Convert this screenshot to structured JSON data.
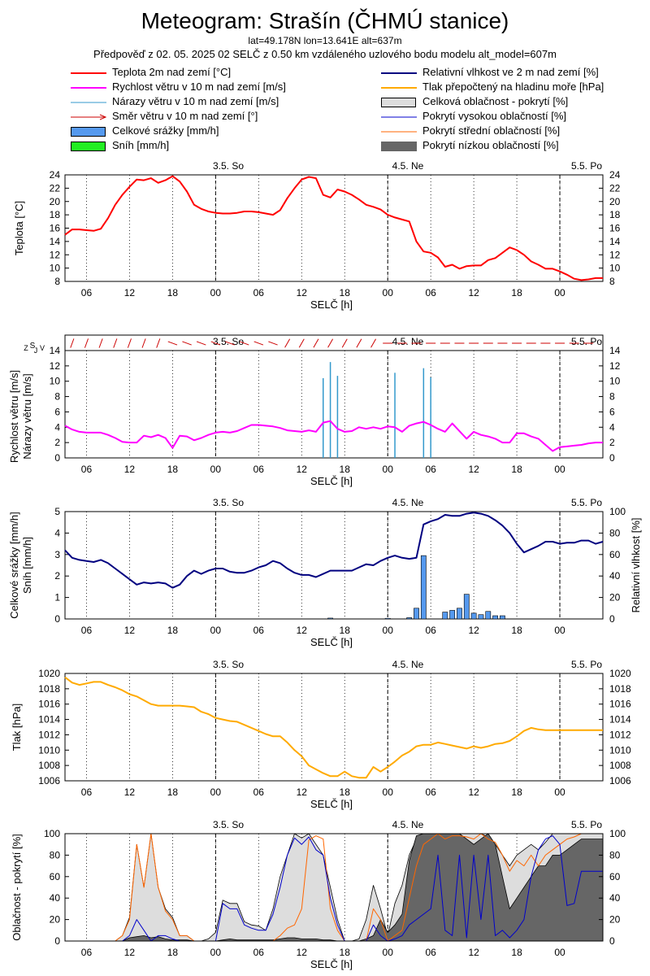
{
  "header": {
    "title": "Meteogram: Strašín (ČHMÚ stanice)",
    "subtitle": "lat=49.178N lon=13.641E alt=637m",
    "forecast": "Předpověď z 02. 05. 2025 02 SELČ z 0.50 km vzdáleného uzlového bodu modelu alt_model=607m"
  },
  "legend": {
    "left": [
      {
        "label": "Teplota 2m nad zemí [°C]",
        "icon": "line",
        "color": "#ff0000"
      },
      {
        "label": "Rychlost větru v 10 m nad zemí [m/s]",
        "icon": "line",
        "color": "#ff00ff"
      },
      {
        "label": "Nárazy větru v 10 m nad zemí [m/s]",
        "icon": "line",
        "color": "#3399cc"
      },
      {
        "label": "Směr větru v 10 m nad zemí [°]",
        "icon": "arrow",
        "color": "#cc0000"
      },
      {
        "label": "Celkové srážky [mm/h]",
        "icon": "box",
        "color": "#5599ee"
      },
      {
        "label": "Sníh [mm/h]",
        "icon": "box",
        "color": "#22ee22"
      }
    ],
    "right": [
      {
        "label": "Relativní vlhkost ve 2 m nad zemí [%]",
        "icon": "line",
        "color": "#000080"
      },
      {
        "label": "Tlak přepočtený na hladinu moře [hPa]",
        "icon": "line",
        "color": "#ffaa00"
      },
      {
        "label": "Celková oblačnost - pokrytí [%]",
        "icon": "box",
        "color": "#dddddd"
      },
      {
        "label": "Pokrytí vysokou oblačností [%]",
        "icon": "line",
        "color": "#0000cc"
      },
      {
        "label": "Pokrytí střední oblačností [%]",
        "icon": "line",
        "color": "#ff6600"
      },
      {
        "label": "Pokrytí nízkou oblačností [%]",
        "icon": "box",
        "color": "#666666"
      }
    ]
  },
  "chart_data": [
    {
      "type": "line",
      "ylabel": "Teplota [°C]",
      "xlabel": "SELČ [h]",
      "ylim": [
        8,
        24
      ],
      "yticks": [
        "8",
        "10",
        "12",
        "14",
        "16",
        "18",
        "20",
        "22",
        "24"
      ],
      "x_hours": [
        0,
        1,
        2,
        3,
        4,
        5,
        6,
        7,
        8,
        9,
        10,
        11,
        12,
        13,
        14,
        15,
        16,
        17,
        18,
        19,
        20,
        21,
        22,
        23,
        24,
        25,
        26,
        27,
        28,
        29,
        30,
        31,
        32,
        33,
        34,
        35,
        36,
        37,
        38,
        39,
        40,
        41,
        42,
        43,
        44,
        45,
        46,
        47,
        48,
        49,
        50,
        51,
        52,
        53,
        54,
        55,
        56,
        57,
        58,
        59,
        60,
        61,
        62,
        63,
        64,
        65,
        66,
        67,
        68,
        69,
        70,
        71,
        72,
        73,
        74,
        75
      ],
      "series": [
        {
          "color": "#ff0000",
          "values": [
            15.0,
            15.8,
            15.8,
            15.7,
            15.6,
            15.9,
            17.5,
            19.5,
            21.0,
            22.2,
            23.3,
            23.2,
            23.5,
            22.8,
            23.2,
            23.8,
            23.0,
            21.5,
            19.5,
            18.9,
            18.5,
            18.3,
            18.2,
            18.2,
            18.3,
            18.5,
            18.5,
            18.4,
            18.2,
            18.0,
            18.7,
            20.5,
            22.0,
            23.3,
            23.7,
            23.5,
            21.0,
            20.6,
            21.8,
            21.5,
            21.0,
            20.3,
            19.5,
            19.2,
            18.8,
            18.0,
            17.6,
            17.3,
            17.0,
            14.0,
            12.5,
            12.3,
            11.6,
            10.2,
            10.5,
            9.9,
            10.3,
            10.4,
            10.4,
            11.2,
            11.5,
            12.3,
            13.1,
            12.7,
            12.0,
            11.0,
            10.5,
            9.9,
            9.9,
            9.5,
            9.0,
            8.4,
            8.2,
            8.3,
            8.5,
            8.5
          ]
        }
      ],
      "top_labels": [
        "3.5. So",
        "4.5. Ne",
        "5.5. Po"
      ]
    },
    {
      "type": "line",
      "ylabel": "Rychlost větru [m/s]",
      "ylabel2": "Nárazy větru [m/s]",
      "xlabel": "SELČ [h]",
      "ylim": [
        0,
        14
      ],
      "yticks": [
        "0",
        "2",
        "4",
        "6",
        "8",
        "10",
        "12",
        "14"
      ],
      "direction_label": "S",
      "direction_sublabels": [
        "Z",
        "J",
        "V"
      ],
      "series": [
        {
          "name": "Rychlost větru",
          "color": "#ff00ff",
          "values": [
            4.2,
            3.7,
            3.4,
            3.3,
            3.3,
            3.3,
            3.0,
            2.6,
            2.1,
            2.0,
            2.0,
            2.9,
            2.7,
            3.0,
            2.6,
            1.3,
            2.9,
            2.8,
            2.3,
            2.6,
            3.0,
            3.3,
            3.4,
            3.3,
            3.5,
            3.9,
            4.3,
            4.3,
            4.2,
            4.1,
            3.9,
            3.6,
            3.5,
            3.4,
            3.6,
            3.4,
            4.6,
            4.8,
            3.8,
            3.4,
            3.5,
            4.0,
            3.8,
            4.0,
            3.8,
            4.1,
            4.0,
            3.4,
            4.2,
            4.5,
            4.7,
            4.3,
            3.8,
            3.4,
            4.5,
            3.5,
            2.5,
            3.4,
            3.0,
            2.8,
            2.5,
            2.0,
            2.0,
            3.2,
            3.2,
            2.8,
            2.5,
            1.7,
            0.9,
            1.4,
            1.5,
            1.6,
            1.7,
            1.9,
            2.0,
            2.0
          ]
        },
        {
          "name": "Nárazy větru",
          "color": "#3399cc",
          "spikes": [
            {
              "x": 36,
              "y": 10.4
            },
            {
              "x": 37,
              "y": 12.5
            },
            {
              "x": 38,
              "y": 10.7
            },
            {
              "x": 46,
              "y": 11.1
            },
            {
              "x": 50,
              "y": 11.7
            },
            {
              "x": 51,
              "y": 10.5
            }
          ]
        }
      ]
    },
    {
      "type": "bar",
      "ylabel": "Celkové srážky [mm/h]",
      "ylabel2": "Sníh [mm/h]",
      "ylabel_right": "Relativní vlhkost [%]",
      "xlabel": "SELČ [h]",
      "ylim": [
        0,
        5
      ],
      "ylim_right": [
        0,
        100
      ],
      "yticks": [
        "0",
        "1",
        "2",
        "3",
        "4",
        "5"
      ],
      "yticks_right": [
        "0",
        "20",
        "40",
        "60",
        "80",
        "100"
      ],
      "precip_bars": [
        {
          "x": 37,
          "v": 0.04
        },
        {
          "x": 45,
          "v": 0.03
        },
        {
          "x": 48,
          "v": 0.06
        },
        {
          "x": 49,
          "v": 0.5
        },
        {
          "x": 50,
          "v": 2.95
        },
        {
          "x": 53,
          "v": 0.32
        },
        {
          "x": 54,
          "v": 0.4
        },
        {
          "x": 55,
          "v": 0.5
        },
        {
          "x": 56,
          "v": 1.15
        },
        {
          "x": 57,
          "v": 0.27
        },
        {
          "x": 58,
          "v": 0.2
        },
        {
          "x": 59,
          "v": 0.35
        },
        {
          "x": 60,
          "v": 0.15
        },
        {
          "x": 61,
          "v": 0.15
        }
      ],
      "series": [
        {
          "name": "Relativní vlhkost",
          "color": "#000080",
          "values": [
            64,
            57,
            55,
            54,
            53,
            55,
            52,
            47,
            42,
            37,
            32,
            34,
            33,
            34,
            33,
            29,
            32,
            40,
            45,
            42,
            45,
            47,
            47,
            44,
            43,
            43,
            45,
            48,
            50,
            54,
            52,
            47,
            43,
            41,
            41,
            39,
            42,
            45,
            45,
            45,
            45,
            48,
            51,
            50,
            54,
            57,
            59,
            57,
            56,
            57,
            88,
            91,
            93,
            97,
            96,
            96,
            98,
            99,
            98,
            96,
            92,
            87,
            80,
            70,
            62,
            65,
            68,
            72,
            72,
            70,
            71,
            71,
            73,
            73,
            70,
            72
          ]
        }
      ]
    },
    {
      "type": "line",
      "ylabel": "Tlak [hPa]",
      "xlabel": "SELČ [h]",
      "ylim": [
        1006,
        1020
      ],
      "yticks": [
        "1006",
        "1008",
        "1010",
        "1012",
        "1014",
        "1016",
        "1018",
        "1020"
      ],
      "series": [
        {
          "name": "Tlak",
          "color": "#ffaa00",
          "values": [
            1019.5,
            1018.8,
            1018.5,
            1018.7,
            1018.9,
            1018.9,
            1018.5,
            1018.2,
            1017.8,
            1017.3,
            1017.0,
            1016.5,
            1016.0,
            1015.8,
            1015.8,
            1015.8,
            1015.8,
            1015.7,
            1015.6,
            1015.0,
            1014.7,
            1014.2,
            1014.0,
            1013.8,
            1013.7,
            1013.3,
            1012.9,
            1012.5,
            1012.1,
            1011.8,
            1011.8,
            1011.0,
            1010.0,
            1009.2,
            1008.0,
            1007.5,
            1007.0,
            1006.6,
            1006.6,
            1007.2,
            1006.6,
            1006.4,
            1006.4,
            1007.8,
            1007.2,
            1007.8,
            1008.5,
            1009.3,
            1009.8,
            1010.5,
            1010.7,
            1010.7,
            1011.0,
            1010.8,
            1010.6,
            1010.4,
            1010.2,
            1010.5,
            1010.3,
            1010.5,
            1010.8,
            1010.9,
            1011.2,
            1011.8,
            1012.5,
            1012.9,
            1012.7,
            1012.6,
            1012.6,
            1012.6,
            1012.6,
            1012.6,
            1012.6,
            1012.6,
            1012.6,
            1012.6
          ]
        }
      ]
    },
    {
      "type": "area",
      "ylabel": "Oblačnost - pokrytí [%]",
      "xlabel": "SELČ [h]",
      "ylim": [
        0,
        100
      ],
      "yticks": [
        "0",
        "20",
        "40",
        "60",
        "80",
        "100"
      ],
      "series": [
        {
          "name": "Celková oblačnost",
          "color": "#dddddd",
          "values": [
            0,
            0,
            0,
            0,
            0,
            0,
            0,
            0,
            5,
            22,
            90,
            50,
            100,
            50,
            30,
            22,
            5,
            5,
            0,
            0,
            2,
            8,
            38,
            35,
            35,
            18,
            15,
            14,
            10,
            30,
            60,
            80,
            100,
            96,
            100,
            90,
            80,
            50,
            20,
            0,
            0,
            2,
            20,
            52,
            30,
            5,
            35,
            52,
            80,
            95,
            100,
            100,
            100,
            100,
            100,
            100,
            100,
            100,
            100,
            97,
            90,
            80,
            70,
            80,
            85,
            90,
            85,
            92,
            100,
            100,
            100,
            100,
            100,
            100,
            100,
            100
          ]
        },
        {
          "name": "Pokrytí nízkou oblačností",
          "color": "#666666",
          "values": [
            0,
            0,
            0,
            0,
            0,
            0,
            0,
            0,
            0,
            3,
            4,
            5,
            3,
            4,
            2,
            1,
            1,
            1,
            0,
            0,
            0,
            0,
            1,
            2,
            1,
            1,
            1,
            1,
            1,
            1,
            2,
            3,
            3,
            2,
            2,
            2,
            1,
            1,
            0,
            0,
            0,
            0,
            2,
            5,
            20,
            8,
            15,
            25,
            75,
            98,
            100,
            100,
            100,
            100,
            100,
            100,
            95,
            90,
            95,
            100,
            90,
            60,
            30,
            40,
            50,
            60,
            70,
            70,
            80,
            80,
            85,
            90,
            95,
            95,
            95,
            95
          ]
        },
        {
          "name": "Pokrytí střední oblačností",
          "color": "#ff6600",
          "values": [
            0,
            0,
            0,
            0,
            0,
            0,
            0,
            0,
            5,
            20,
            90,
            50,
            100,
            50,
            28,
            20,
            5,
            5,
            0,
            0,
            0,
            0,
            0,
            0,
            0,
            0,
            0,
            0,
            0,
            0,
            5,
            12,
            15,
            30,
            94,
            98,
            95,
            30,
            10,
            0,
            0,
            0,
            0,
            30,
            20,
            0,
            5,
            10,
            40,
            70,
            90,
            95,
            100,
            95,
            98,
            98,
            97,
            95,
            100,
            95,
            92,
            80,
            65,
            75,
            70,
            80,
            70,
            80,
            85,
            90,
            95,
            97,
            100,
            100,
            100,
            100
          ]
        },
        {
          "name": "Pokrytí vysokou oblačností",
          "color": "#0000cc",
          "values": [
            0,
            0,
            0,
            0,
            0,
            0,
            0,
            0,
            0,
            5,
            20,
            10,
            0,
            5,
            5,
            2,
            0,
            0,
            0,
            0,
            0,
            0,
            35,
            30,
            30,
            15,
            12,
            10,
            10,
            25,
            50,
            80,
            96,
            90,
            97,
            85,
            80,
            40,
            15,
            0,
            0,
            0,
            0,
            15,
            5,
            0,
            2,
            5,
            15,
            20,
            25,
            30,
            80,
            10,
            5,
            80,
            3,
            80,
            20,
            80,
            5,
            10,
            3,
            10,
            20,
            60,
            85,
            95,
            98,
            90,
            33,
            35,
            65,
            65,
            65,
            65
          ]
        }
      ]
    }
  ],
  "x_axis": {
    "tick_labels": [
      "06",
      "12",
      "18",
      "00",
      "06",
      "12",
      "18",
      "00",
      "06",
      "12",
      "18",
      "00"
    ],
    "day_labels": [
      "3.5. So",
      "4.5. Ne",
      "5.5. Po"
    ]
  }
}
